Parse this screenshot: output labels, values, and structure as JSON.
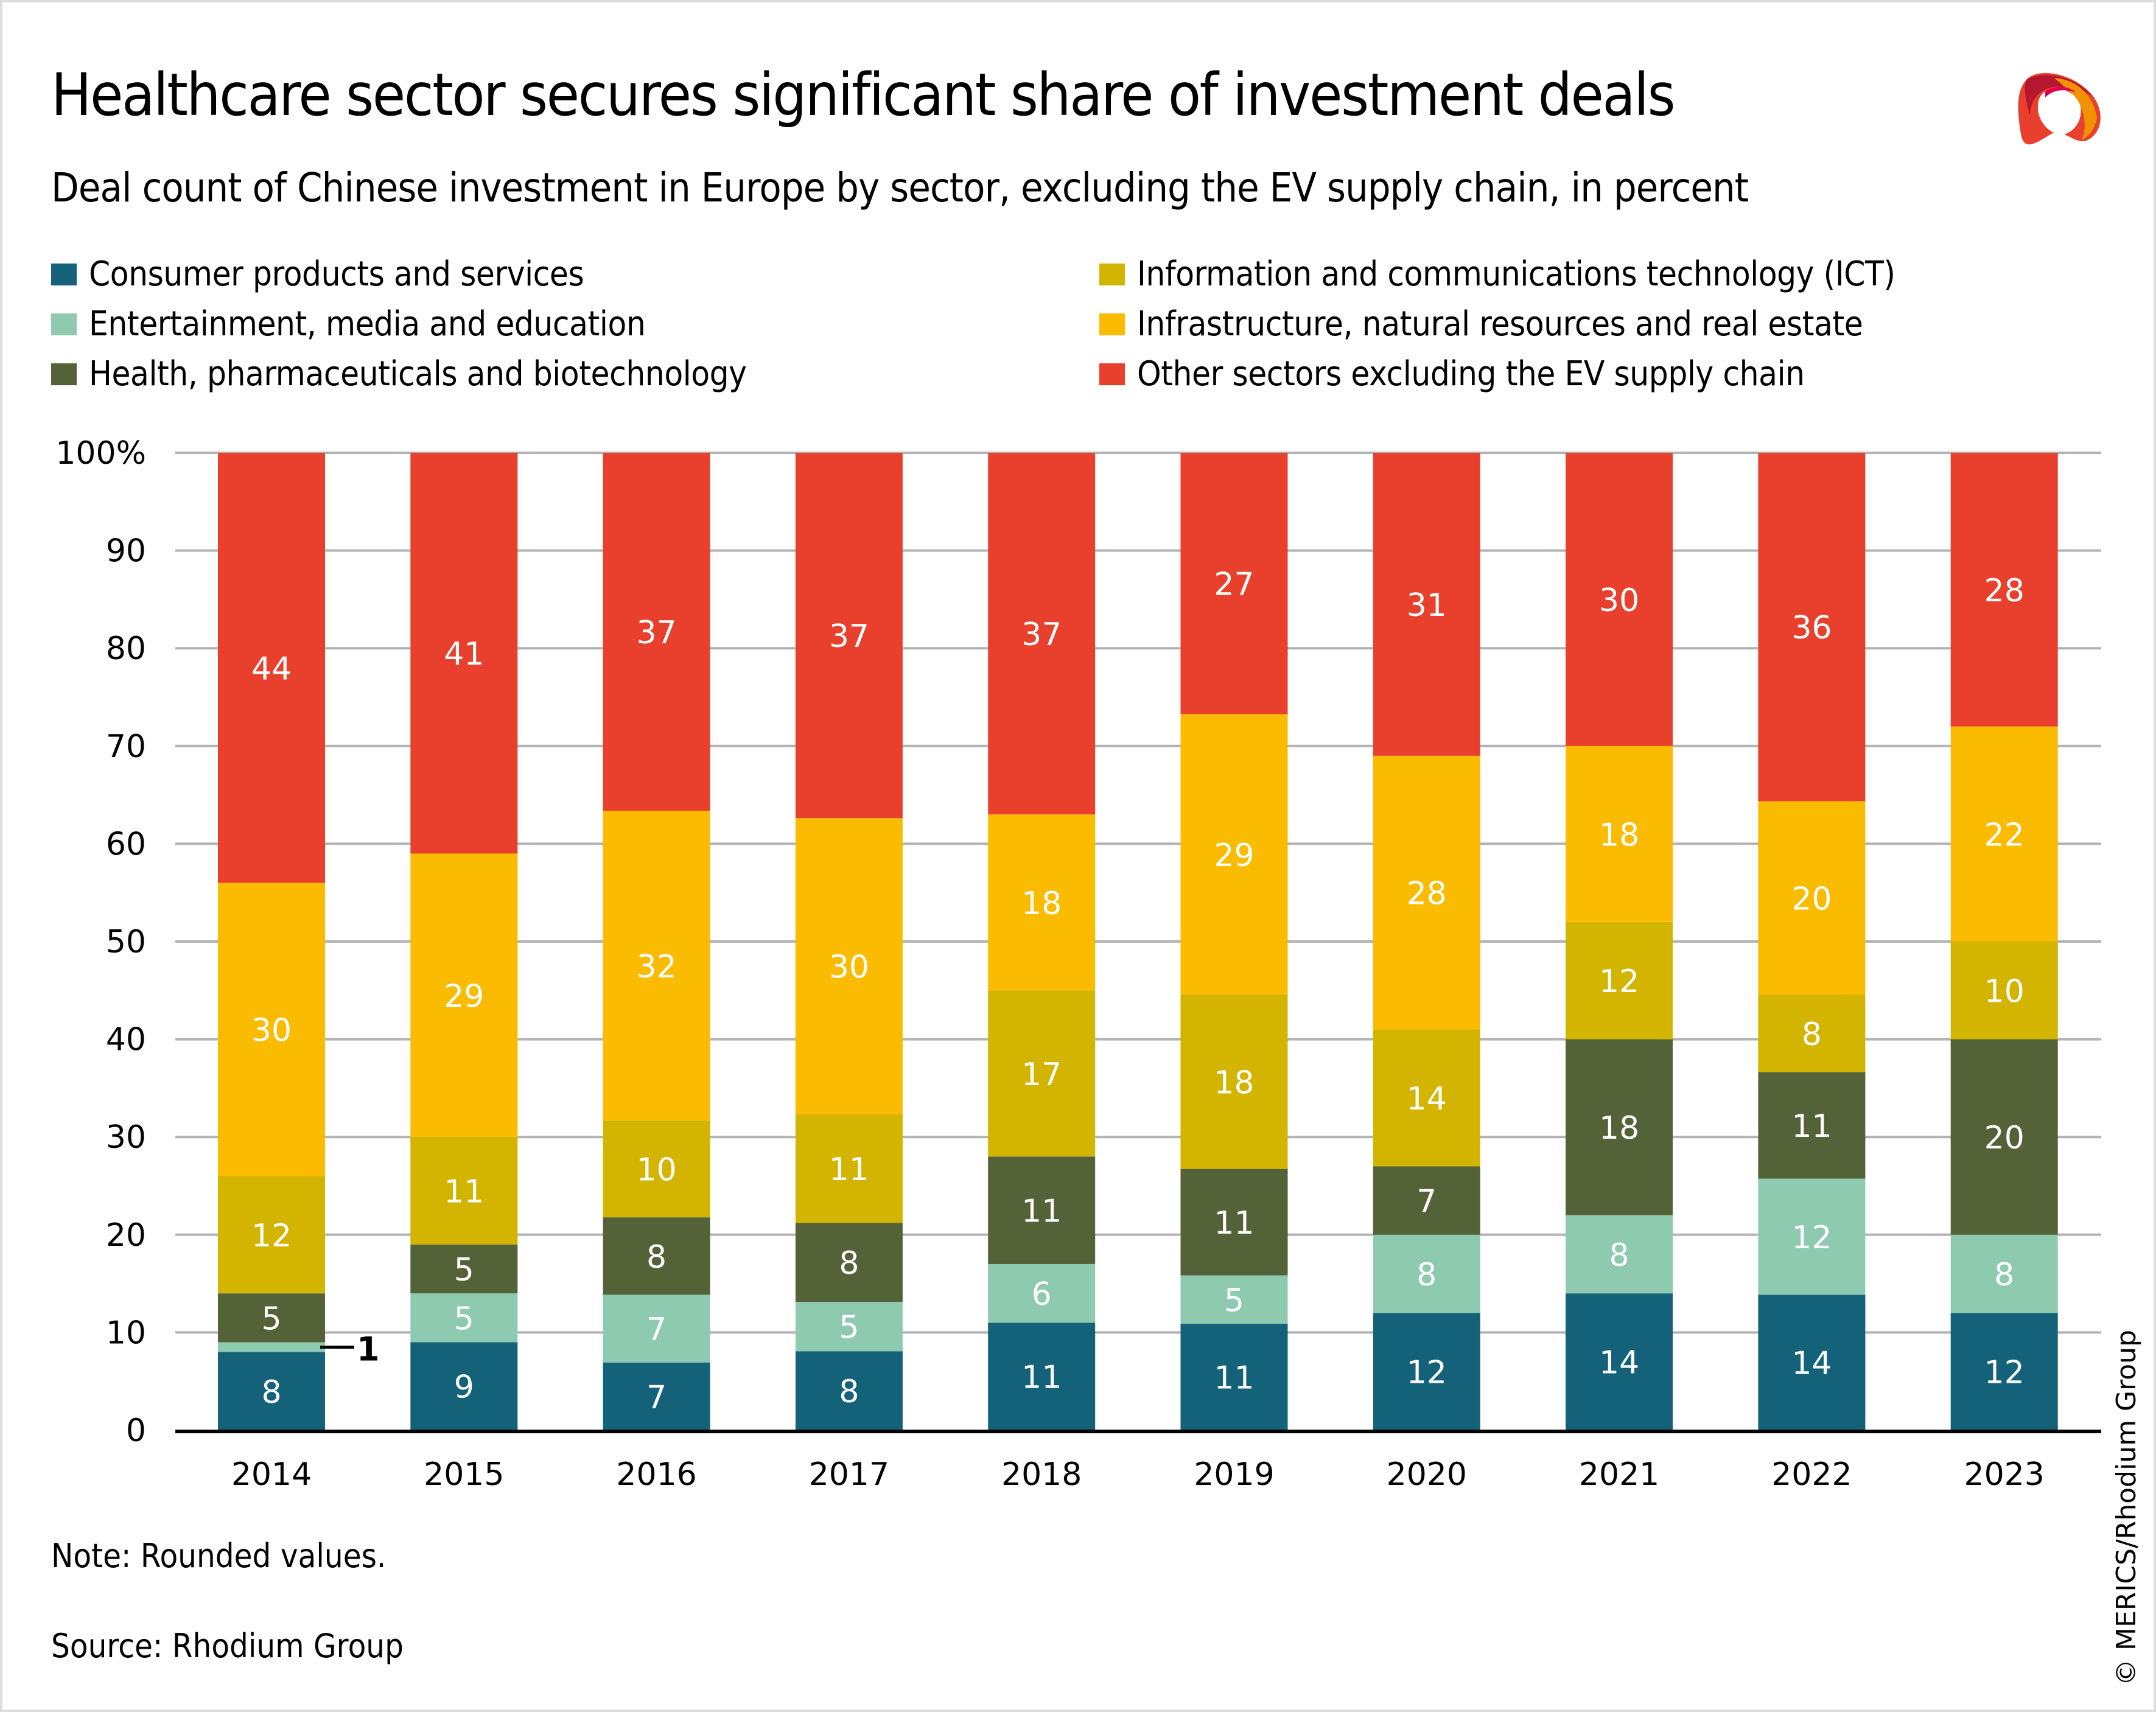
{
  "header": {
    "title": "Healthcare sector secures significant share of investment deals",
    "subtitle": "Deal count of Chinese investment in Europe by sector, excluding the EV supply chain, in percent",
    "logo": "merics-logo-icon"
  },
  "legend": [
    {
      "label": "Consumer products and services",
      "color": "#14627a"
    },
    {
      "label": "Entertainment, media and education",
      "color": "#8ecaaf"
    },
    {
      "label": "Health, pharmaceuticals and biotechnology",
      "color": "#536337"
    },
    {
      "label": "Information and communications technology (ICT)",
      "color": "#d3b400"
    },
    {
      "label": "Infrastructure, natural resources and real estate",
      "color": "#fabb00"
    },
    {
      "label": "Other sectors excluding the EV supply chain",
      "color": "#e8402c"
    }
  ],
  "footer": {
    "note": "Note: Rounded values.",
    "source": "Source: Rhodium Group",
    "copyright": "© MERICS/Rhodium Group"
  },
  "chart_data": {
    "type": "bar",
    "stacked": true,
    "title": "Healthcare sector secures significant share of investment deals",
    "subtitle": "Deal count of Chinese investment in Europe by sector, excluding the EV supply chain, in percent",
    "xlabel": "",
    "ylabel": "",
    "ylim": [
      0,
      100
    ],
    "yticks": [
      0,
      10,
      20,
      30,
      40,
      50,
      60,
      70,
      80,
      90,
      100
    ],
    "ytick_labels": [
      "0",
      "10",
      "20",
      "30",
      "40",
      "50",
      "60",
      "70",
      "80",
      "90",
      "100%"
    ],
    "grid": true,
    "legend_position": "top",
    "categories": [
      "2014",
      "2015",
      "2016",
      "2017",
      "2018",
      "2019",
      "2020",
      "2021",
      "2022",
      "2023"
    ],
    "series": [
      {
        "name": "Consumer products and services",
        "color": "#14627a",
        "values": [
          8,
          9,
          7,
          8,
          11,
          11,
          12,
          14,
          14,
          12
        ]
      },
      {
        "name": "Entertainment, media and education",
        "color": "#8ecaaf",
        "values": [
          1,
          5,
          7,
          5,
          6,
          5,
          8,
          8,
          12,
          8
        ]
      },
      {
        "name": "Health, pharmaceuticals and biotechnology",
        "color": "#536337",
        "values": [
          5,
          5,
          8,
          8,
          11,
          11,
          7,
          18,
          11,
          20
        ]
      },
      {
        "name": "Information and communications technology (ICT)",
        "color": "#d3b400",
        "values": [
          12,
          11,
          10,
          11,
          17,
          18,
          14,
          12,
          8,
          10
        ]
      },
      {
        "name": "Infrastructure, natural resources and real estate",
        "color": "#fabb00",
        "values": [
          30,
          29,
          32,
          30,
          18,
          29,
          28,
          18,
          20,
          22
        ]
      },
      {
        "name": "Other sectors excluding the EV supply chain",
        "color": "#e8402c",
        "values": [
          44,
          41,
          37,
          37,
          37,
          27,
          31,
          30,
          36,
          28
        ]
      }
    ],
    "annotations": [
      {
        "category": "2014",
        "series": "Entertainment, media and education",
        "text": "1",
        "placement": "outside-right"
      }
    ],
    "note": "Rounded values."
  }
}
